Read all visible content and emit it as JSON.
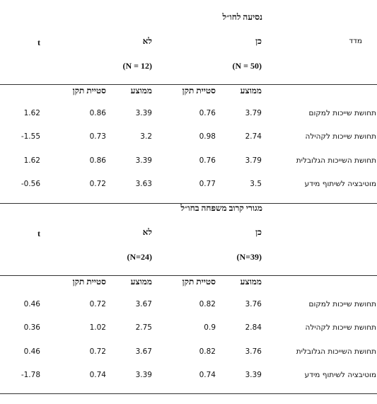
{
  "sections": [
    {
      "title": "נסיעה לחו״ל",
      "measure": "מדד",
      "yes": "כן",
      "no": "לא",
      "t": "t",
      "yes_n": "(N = 50)",
      "no_n": "(N = 12)",
      "subheaders": [
        "ממוצע",
        "סטיית תקן",
        "ממוצע",
        "סטיית תקן"
      ],
      "rows": [
        {
          "label": "תחושת שייכות למקום",
          "values": [
            3.79,
            0.76,
            3.39,
            0.86,
            1.62
          ]
        },
        {
          "label": "תחושת שייכות לקהילה",
          "values": [
            2.74,
            0.98,
            3.2,
            0.73,
            -1.55
          ]
        },
        {
          "label": "תחושת השייכות הגלובלית",
          "values": [
            3.79,
            0.76,
            3.39,
            0.86,
            1.62
          ]
        },
        {
          "label": "מוטיבציה לשיתוף מידע",
          "values": [
            3.5,
            0.77,
            3.63,
            0.72,
            -0.56
          ]
        }
      ]
    },
    {
      "title": "מגורי קרוב משפחה בחו״ל",
      "yes": "כן",
      "no": "לא",
      "t": "t",
      "yes_n": "(N=39)",
      "no_n": "(N=24)",
      "subheaders": [
        "ממוצע",
        "סטיית תקן",
        "ממוצע",
        "סטיית תקן"
      ],
      "rows": [
        {
          "label": "תחושת שייכות למקום",
          "values": [
            3.76,
            0.82,
            3.67,
            0.72,
            0.46
          ]
        },
        {
          "label": "תחושת שייכות לקהילה",
          "values": [
            2.84,
            0.9,
            2.75,
            1.02,
            0.36
          ]
        },
        {
          "label": "תחושת השייכות הגלובלית",
          "values": [
            3.76,
            0.82,
            3.67,
            0.72,
            0.46
          ]
        },
        {
          "label": "מוטיבציה לשיתוף מידע",
          "values": [
            3.39,
            0.74,
            3.39,
            0.74,
            -1.78
          ]
        }
      ]
    }
  ]
}
